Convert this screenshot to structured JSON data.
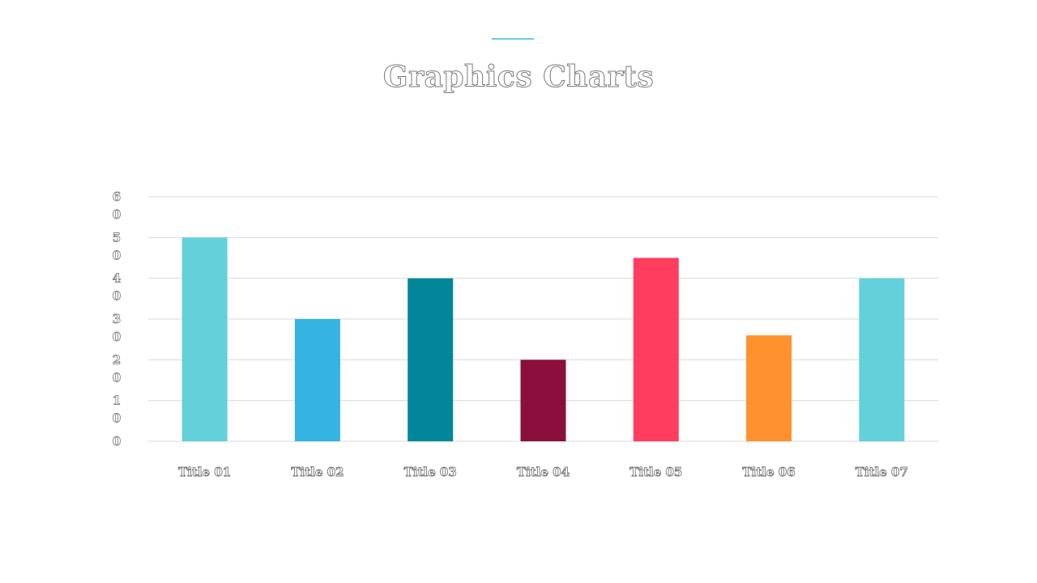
{
  "header": {
    "title": "Graphics Charts",
    "accent_color": "#63D0DA"
  },
  "chart_data": {
    "type": "bar",
    "title": "Graphics Charts",
    "categories": [
      "Title 01",
      "Title 02",
      "Title 03",
      "Title 04",
      "Title 05",
      "Title 06",
      "Title 07"
    ],
    "values": [
      50,
      30,
      40,
      20,
      45,
      26,
      40
    ],
    "colors": [
      "#63D0DA",
      "#35B3E3",
      "#02879A",
      "#8B0F3C",
      "#FF3E5F",
      "#FF922E",
      "#63D0DA"
    ],
    "ylim": [
      0,
      60
    ],
    "yticks": [
      0,
      10,
      20,
      30,
      40,
      50,
      60
    ],
    "grid": true,
    "grid_color": "#d9d9d9",
    "xlabel": "",
    "ylabel": "",
    "legend": "none"
  }
}
